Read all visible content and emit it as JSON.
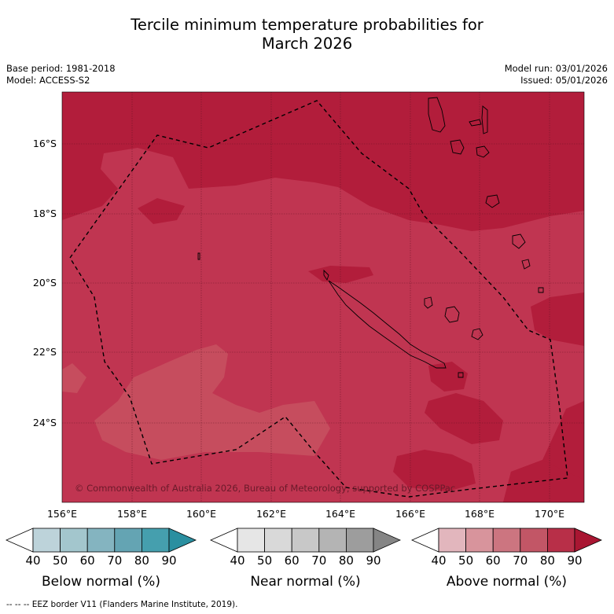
{
  "title_line1": "Tercile minimum temperature probabilities for",
  "title_line2": "March 2026",
  "base_period": "Base period: 1981-2018",
  "model": "Model: ACCESS-S2",
  "model_run": "Model run: 03/01/2026",
  "issued": "Issued: 05/01/2026",
  "lat_labels": [
    "16°S",
    "18°S",
    "20°S",
    "22°S",
    "24°S"
  ],
  "lon_labels": [
    "156°E",
    "158°E",
    "160°E",
    "162°E",
    "164°E",
    "166°E",
    "168°E",
    "170°E"
  ],
  "copyright": "© Commonwealth of Australia 2026, Bureau of Meteorology, supported by COSPPac",
  "colorbars": [
    {
      "title": "Below normal (%)",
      "ticks": [
        "40",
        "50",
        "60",
        "70",
        "80",
        "90"
      ],
      "colors": [
        "#ffffff",
        "#bdd3da",
        "#a3c6cd",
        "#84b4c0",
        "#64a4b3",
        "#459fae",
        "#2a8fa0"
      ]
    },
    {
      "title": "Near normal (%)",
      "ticks": [
        "40",
        "50",
        "60",
        "70",
        "80",
        "90"
      ],
      "colors": [
        "#ffffff",
        "#e6e6e6",
        "#d9d9d9",
        "#c8c8c8",
        "#b4b4b4",
        "#9d9d9d",
        "#858585"
      ]
    },
    {
      "title": "Above normal (%)",
      "ticks": [
        "40",
        "50",
        "60",
        "70",
        "80",
        "90"
      ],
      "colors": [
        "#ffffff",
        "#e2b6bd",
        "#d8949c",
        "#cc7580",
        "#c25666",
        "#b82f48",
        "#a91632"
      ]
    }
  ],
  "footer": "--  --  -- EEZ border V11 (Flanders Marine Institute, 2019).",
  "colors": {
    "cat80": "#b21d3b",
    "cat70": "#c03551",
    "cat60": "#c64d5e"
  }
}
